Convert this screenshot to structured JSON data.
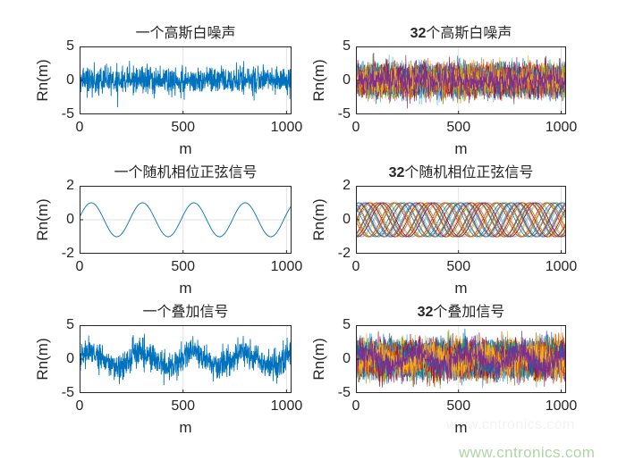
{
  "figure": {
    "background": "#ffffff"
  },
  "style": {
    "axis_color": "#262626",
    "grid_color": "#e2e2e2",
    "single_line_color": "#0072BD",
    "watermark_color": "#aed6a2"
  },
  "palette": [
    "#0072BD",
    "#D95319",
    "#EDB120",
    "#7E2F8E",
    "#77AC30",
    "#4DBEEE",
    "#A2142F"
  ],
  "watermark": {
    "text": "www.cntronics.com"
  },
  "chart_data": [
    {
      "type": "line",
      "title": "一个高斯白噪声",
      "title_number": "",
      "title_text": "一个高斯白噪声",
      "xlabel": "m",
      "ylabel": "Rn(m)",
      "xlim": [
        0,
        1024
      ],
      "ylim": [
        -5,
        5
      ],
      "xticks": [
        0,
        500,
        1000
      ],
      "yticks": [
        5,
        0,
        -5
      ],
      "xtick_labels": [
        "0",
        "500",
        "1000"
      ],
      "ytick_labels": [
        "5",
        "0",
        "-5"
      ],
      "grid": true,
      "legend": "none",
      "series_count": 1,
      "n_points": 1024,
      "signal": {
        "kind": "gaussian_noise",
        "sigma": 1
      },
      "colors": [
        "#0072BD"
      ],
      "seed": 7
    },
    {
      "type": "line",
      "title": "32个高斯白噪声",
      "title_number": "32",
      "title_text": "个高斯白噪声",
      "xlabel": "m",
      "ylabel": "Rn(m)",
      "xlim": [
        0,
        1024
      ],
      "ylim": [
        -5,
        5
      ],
      "xticks": [
        0,
        500,
        1000
      ],
      "yticks": [
        5,
        0,
        -5
      ],
      "xtick_labels": [
        "0",
        "500",
        "1000"
      ],
      "ytick_labels": [
        "5",
        "0",
        "-5"
      ],
      "grid": true,
      "legend": "none",
      "series_count": 32,
      "n_points": 768,
      "signal": {
        "kind": "gaussian_noise",
        "sigma": 1
      },
      "colors": "palette",
      "seed": 19
    },
    {
      "type": "line",
      "title": "一个随机相位正弦信号",
      "title_number": "",
      "title_text": "一个随机相位正弦信号",
      "xlabel": "m",
      "ylabel": "Rn(m)",
      "xlim": [
        0,
        1024
      ],
      "ylim": [
        -2,
        2
      ],
      "xticks": [
        0,
        500,
        1000
      ],
      "yticks": [
        2,
        0,
        -2
      ],
      "xtick_labels": [
        "0",
        "500",
        "1000"
      ],
      "ytick_labels": [
        "2",
        "0",
        "-2"
      ],
      "grid": true,
      "legend": "none",
      "series_count": 1,
      "n_points": 1024,
      "signal": {
        "kind": "sine",
        "amplitude": 1,
        "period": 248,
        "phase": 0.15
      },
      "colors": [
        "#0072BD"
      ],
      "seed": 1
    },
    {
      "type": "line",
      "title": "32个随机相位正弦信号",
      "title_number": "32",
      "title_text": "个随机相位正弦信号",
      "xlabel": "m",
      "ylabel": "Rn(m)",
      "xlim": [
        0,
        1024
      ],
      "ylim": [
        -2,
        2
      ],
      "xticks": [
        0,
        500,
        1000
      ],
      "yticks": [
        2,
        0,
        -2
      ],
      "xtick_labels": [
        "0",
        "500",
        "1000"
      ],
      "ytick_labels": [
        "2",
        "0",
        "-2"
      ],
      "grid": true,
      "legend": "none",
      "series_count": 32,
      "n_points": 768,
      "signal": {
        "kind": "sine",
        "amplitude": 1,
        "period": 248,
        "random_phase": true
      },
      "colors": "palette",
      "seed": 23
    },
    {
      "type": "line",
      "title": "一个叠加信号",
      "title_number": "",
      "title_text": "一个叠加信号",
      "xlabel": "m",
      "ylabel": "Rn(m)",
      "xlim": [
        0,
        1024
      ],
      "ylim": [
        -5,
        5
      ],
      "xticks": [
        0,
        500,
        1000
      ],
      "yticks": [
        5,
        0,
        -5
      ],
      "xtick_labels": [
        "0",
        "500",
        "1000"
      ],
      "ytick_labels": [
        "5",
        "0",
        "-5"
      ],
      "grid": true,
      "legend": "none",
      "series_count": 1,
      "n_points": 1024,
      "signal": {
        "kind": "sine_plus_noise",
        "amplitude": 1,
        "period": 248,
        "phase": 0.15,
        "sigma": 1
      },
      "colors": [
        "#0072BD"
      ],
      "seed": 42
    },
    {
      "type": "line",
      "title": "32个叠加信号",
      "title_number": "32",
      "title_text": "个叠加信号",
      "xlabel": "m",
      "ylabel": "Rn(m)",
      "xlim": [
        0,
        1024
      ],
      "ylim": [
        -5,
        5
      ],
      "xticks": [
        0,
        500,
        1000
      ],
      "yticks": [
        5,
        0,
        -5
      ],
      "xtick_labels": [
        "0",
        "500",
        "1000"
      ],
      "ytick_labels": [
        "5",
        "0",
        "-5"
      ],
      "grid": true,
      "legend": "none",
      "series_count": 32,
      "n_points": 768,
      "signal": {
        "kind": "sine_plus_noise",
        "amplitude": 1,
        "period": 248,
        "random_phase": true,
        "sigma": 1
      },
      "colors": "palette",
      "seed": 57
    }
  ]
}
